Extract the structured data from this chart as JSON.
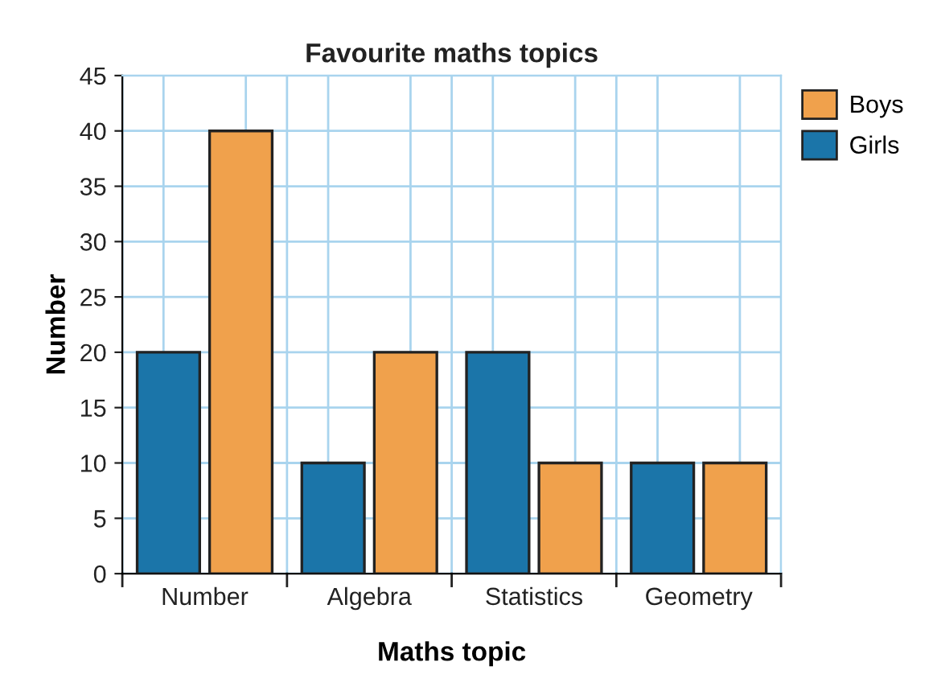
{
  "chart_data": {
    "type": "bar",
    "title": "Favourite maths topics",
    "xlabel": "Maths topic",
    "ylabel": "Number",
    "categories": [
      "Number",
      "Algebra",
      "Statistics",
      "Geometry"
    ],
    "series": [
      {
        "name": "Girls",
        "color": "#1b75a9",
        "values": [
          20,
          10,
          20,
          10
        ]
      },
      {
        "name": "Boys",
        "color": "#f0a14c",
        "values": [
          40,
          20,
          10,
          10
        ]
      }
    ],
    "ylim": [
      0,
      45
    ],
    "yticks": [
      0,
      5,
      10,
      15,
      20,
      25,
      30,
      35,
      40,
      45
    ],
    "grid": true,
    "legend": "top right"
  }
}
